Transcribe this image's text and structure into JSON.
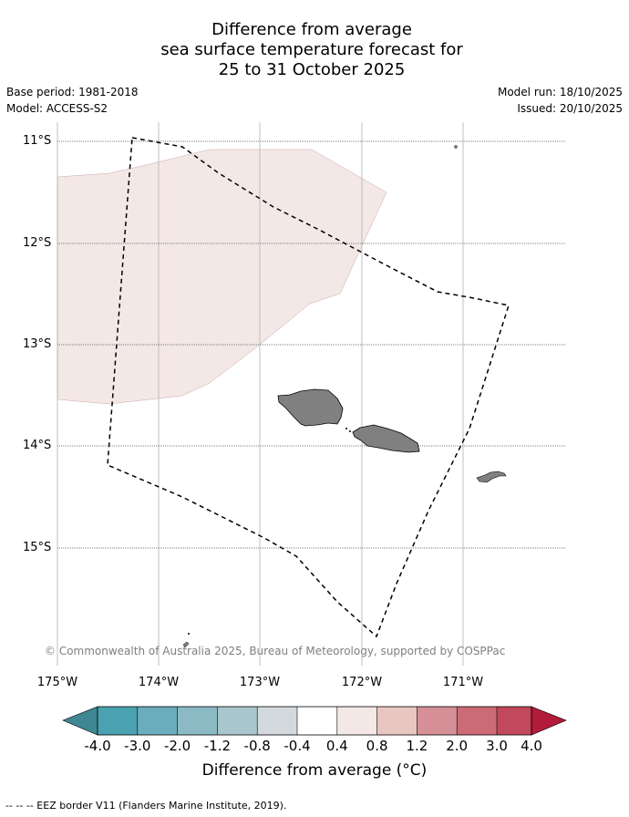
{
  "title": {
    "line1": "Difference from average",
    "line2": "sea surface temperature forecast for",
    "line3": "25 to 31 October 2025"
  },
  "info": {
    "base_period": "Base period: 1981-2018",
    "model": "Model: ACCESS-S2",
    "model_run": "Model run: 18/10/2025",
    "issued": "Issued: 20/10/2025"
  },
  "map": {
    "lat_labels": [
      "11°S",
      "12°S",
      "13°S",
      "14°S",
      "15°S"
    ],
    "lon_labels": [
      "175°W",
      "174°W",
      "173°W",
      "172°W",
      "171°W"
    ],
    "copyright": "© Commonwealth of Australia 2025, Bureau of Meteorology, supported by COSPPac",
    "anomaly_region_color": "#f4e8e7",
    "land_color": "#808080"
  },
  "colorbar": {
    "label": "Difference from average (°C)",
    "ticks": [
      "-4.0",
      "-3.0",
      "-2.0",
      "-1.2",
      "-0.8",
      "-0.4",
      "0.4",
      "0.8",
      "1.2",
      "2.0",
      "3.0",
      "4.0"
    ],
    "colors": [
      "#3f8792",
      "#4aa2b0",
      "#6aadbc",
      "#8bb9c4",
      "#a8c6cb",
      "#d3d9dc",
      "#ffffff",
      "#f4e8e7",
      "#e8c6c2",
      "#d68f97",
      "#cc6a76",
      "#c2485b",
      "#b31b3a"
    ]
  },
  "legend": {
    "eez": "--  --  -- EEZ border V11 (Flanders Marine Institute, 2019)."
  }
}
